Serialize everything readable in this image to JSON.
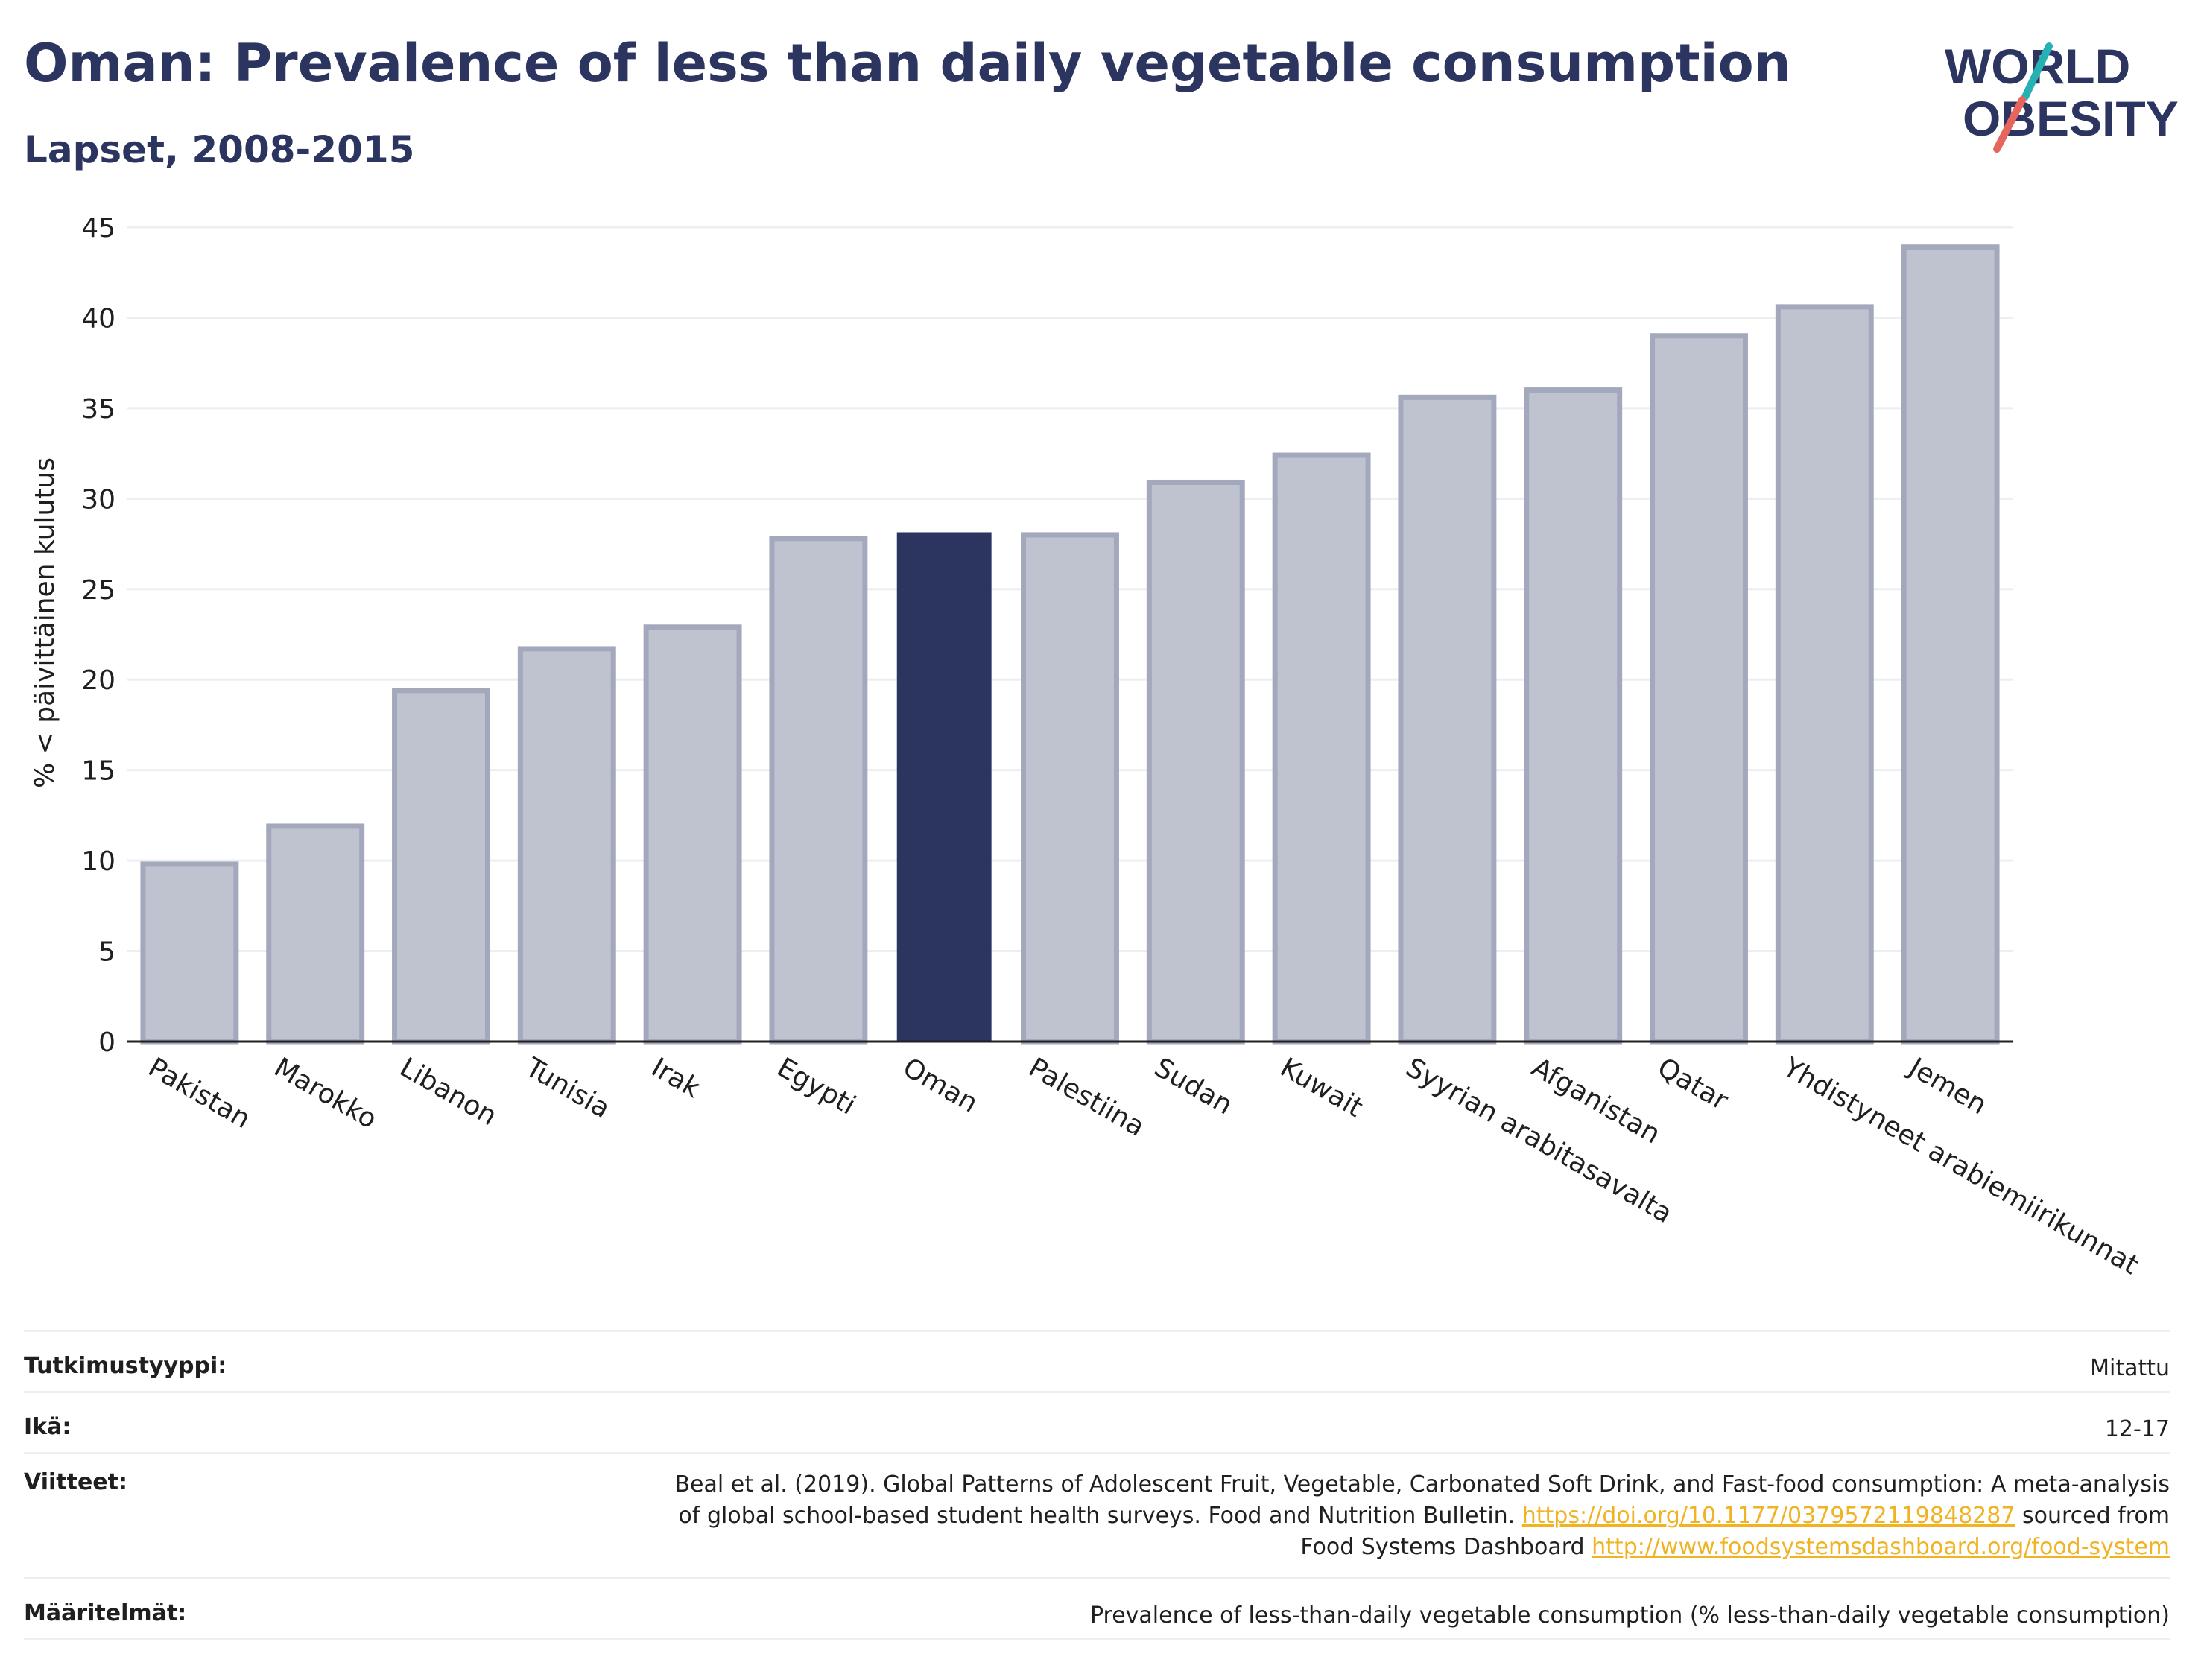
{
  "header": {
    "title": "Oman: Prevalence of less than daily vegetable consumption",
    "subtitle": "Lapset, 2008-2015"
  },
  "logo": {
    "line1": "WORLD",
    "line2": "OBESITY",
    "colors": [
      "#2c3560",
      "#26b1b5",
      "#e6655c"
    ]
  },
  "chart_data": {
    "type": "bar",
    "ylabel": "% < päivittäinen kulutus",
    "xlabel": "",
    "ylim": [
      0,
      45
    ],
    "yticks": [
      0,
      5,
      10,
      15,
      20,
      25,
      30,
      35,
      40,
      45
    ],
    "categories": [
      "Pakistan",
      "Marokko",
      "Libanon",
      "Tunisia",
      "Irak",
      "Egypti",
      "Oman",
      "Palestiina",
      "Sudan",
      "Kuwait",
      "Syyrian arabitasavalta",
      "Afganistan",
      "Qatar",
      "Yhdistyneet arabiemiirikunnat",
      "Jemen"
    ],
    "values": [
      9.8,
      11.9,
      19.4,
      21.7,
      22.9,
      27.8,
      28.1,
      28.0,
      30.9,
      32.4,
      35.6,
      36.0,
      39.0,
      40.6,
      43.9
    ],
    "highlight": "Oman",
    "colors": {
      "highlight": "#2c3560",
      "other": "#bfc2cf",
      "other_border": "#a3a8bd",
      "grid": "#eceef3"
    },
    "grid": true
  },
  "info": {
    "study_type": {
      "label": "Tutkimustyyppi:",
      "value": "Mitattu"
    },
    "age": {
      "label": "Ikä:",
      "value": "12-17"
    },
    "references": {
      "label": "Viitteet:",
      "text1": "Beal et al. (2019). Global Patterns of Adolescent Fruit, Vegetable, Carbonated Soft Drink, and Fast-food consumption: A meta-analysis",
      "text2": "of global school-based student health surveys. Food and Nutrition Bulletin.",
      "link1": "https://doi.org/10.1177/0379572119848287",
      "text3": "sourced from",
      "text4": "Food Systems Dashboard",
      "link2": "http://www.foodsystemsdashboard.org/food-system"
    },
    "definitions": {
      "label": "Määritelmät:",
      "value": "Prevalence of less-than-daily vegetable consumption (% less-than-daily vegetable consumption)"
    }
  }
}
